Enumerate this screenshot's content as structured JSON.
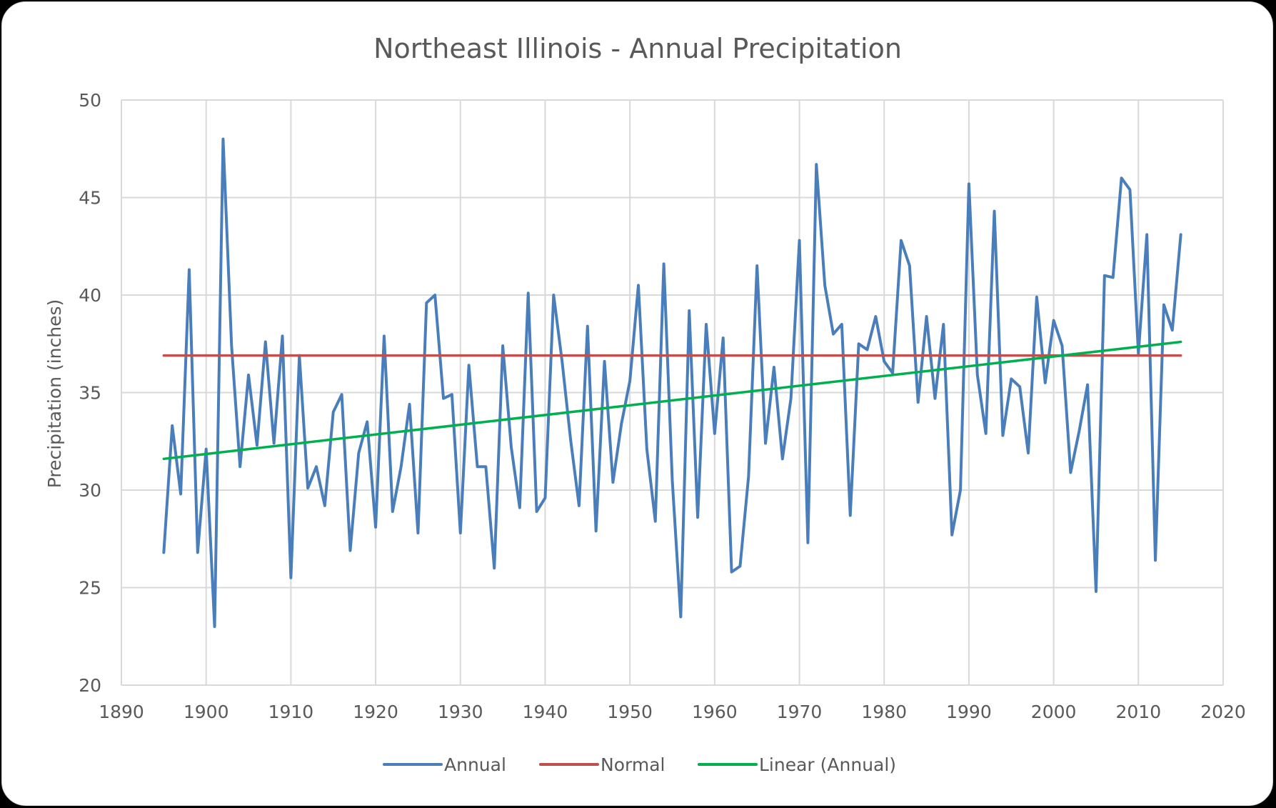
{
  "chart_data": {
    "type": "line",
    "title": "Northeast Illinois - Annual Precipitation",
    "xlabel": "",
    "ylabel": "Precipitation (inches)",
    "xlim": [
      1890,
      2020
    ],
    "ylim": [
      20,
      50
    ],
    "x_ticks": [
      1890,
      1900,
      1910,
      1920,
      1930,
      1940,
      1950,
      1960,
      1970,
      1980,
      1990,
      2000,
      2010,
      2020
    ],
    "y_ticks": [
      20,
      25,
      30,
      35,
      40,
      45,
      50
    ],
    "grid": true,
    "legend_position": "bottom",
    "x": [
      1895,
      1896,
      1897,
      1898,
      1899,
      1900,
      1901,
      1902,
      1903,
      1904,
      1905,
      1906,
      1907,
      1908,
      1909,
      1910,
      1911,
      1912,
      1913,
      1914,
      1915,
      1916,
      1917,
      1918,
      1919,
      1920,
      1921,
      1922,
      1923,
      1924,
      1925,
      1926,
      1927,
      1928,
      1929,
      1930,
      1931,
      1932,
      1933,
      1934,
      1935,
      1936,
      1937,
      1938,
      1939,
      1940,
      1941,
      1942,
      1943,
      1944,
      1945,
      1946,
      1947,
      1948,
      1949,
      1950,
      1951,
      1952,
      1953,
      1954,
      1955,
      1956,
      1957,
      1958,
      1959,
      1960,
      1961,
      1962,
      1963,
      1964,
      1965,
      1966,
      1967,
      1968,
      1969,
      1970,
      1971,
      1972,
      1973,
      1974,
      1975,
      1976,
      1977,
      1978,
      1979,
      1980,
      1981,
      1982,
      1983,
      1984,
      1985,
      1986,
      1987,
      1988,
      1989,
      1990,
      1991,
      1992,
      1993,
      1994,
      1995,
      1996,
      1997,
      1998,
      1999,
      2000,
      2001,
      2002,
      2003,
      2004,
      2005,
      2006,
      2007,
      2008,
      2009,
      2010,
      2011,
      2012,
      2013,
      2014,
      2015
    ],
    "series": [
      {
        "name": "Annual",
        "color": "#4a7ebb",
        "values": [
          26.8,
          33.3,
          29.8,
          41.3,
          26.8,
          32.1,
          23.0,
          48.0,
          37.4,
          31.2,
          35.9,
          32.3,
          37.6,
          32.4,
          37.9,
          25.5,
          36.9,
          30.1,
          31.2,
          29.2,
          34.0,
          34.9,
          26.9,
          31.9,
          33.5,
          28.1,
          37.9,
          28.9,
          31.2,
          34.4,
          27.8,
          39.6,
          40.0,
          34.7,
          34.9,
          27.8,
          36.4,
          31.2,
          31.2,
          26.0,
          37.4,
          32.2,
          29.1,
          40.1,
          28.9,
          29.6,
          40.0,
          36.6,
          32.6,
          29.2,
          38.4,
          27.9,
          36.6,
          30.4,
          33.4,
          35.6,
          40.5,
          32.1,
          28.4,
          41.6,
          30.5,
          23.5,
          39.2,
          28.6,
          38.5,
          32.9,
          37.8,
          25.8,
          26.1,
          30.7,
          41.5,
          32.4,
          36.3,
          31.6,
          34.7,
          42.8,
          27.3,
          46.7,
          40.5,
          38.0,
          38.5,
          28.7,
          37.5,
          37.2,
          38.9,
          36.6,
          36.0,
          42.8,
          41.5,
          34.5,
          38.9,
          34.7,
          38.5,
          27.7,
          30.0,
          45.7,
          35.9,
          32.9,
          44.3,
          32.8,
          35.7,
          35.3,
          31.9,
          39.9,
          35.5,
          38.7,
          37.4,
          30.9,
          33.0,
          35.4,
          24.8,
          41.0,
          40.9,
          46.0,
          45.4,
          37.0,
          43.1,
          26.4,
          39.5,
          38.2,
          43.1
        ]
      },
      {
        "name": "Normal",
        "color": "#c0504d",
        "constant": 36.9,
        "x_range": [
          1895,
          2015
        ]
      },
      {
        "name": "Linear (Annual)",
        "color": "#00b050",
        "endpoints": [
          [
            1895,
            31.6
          ],
          [
            2015,
            37.6
          ]
        ]
      }
    ]
  }
}
